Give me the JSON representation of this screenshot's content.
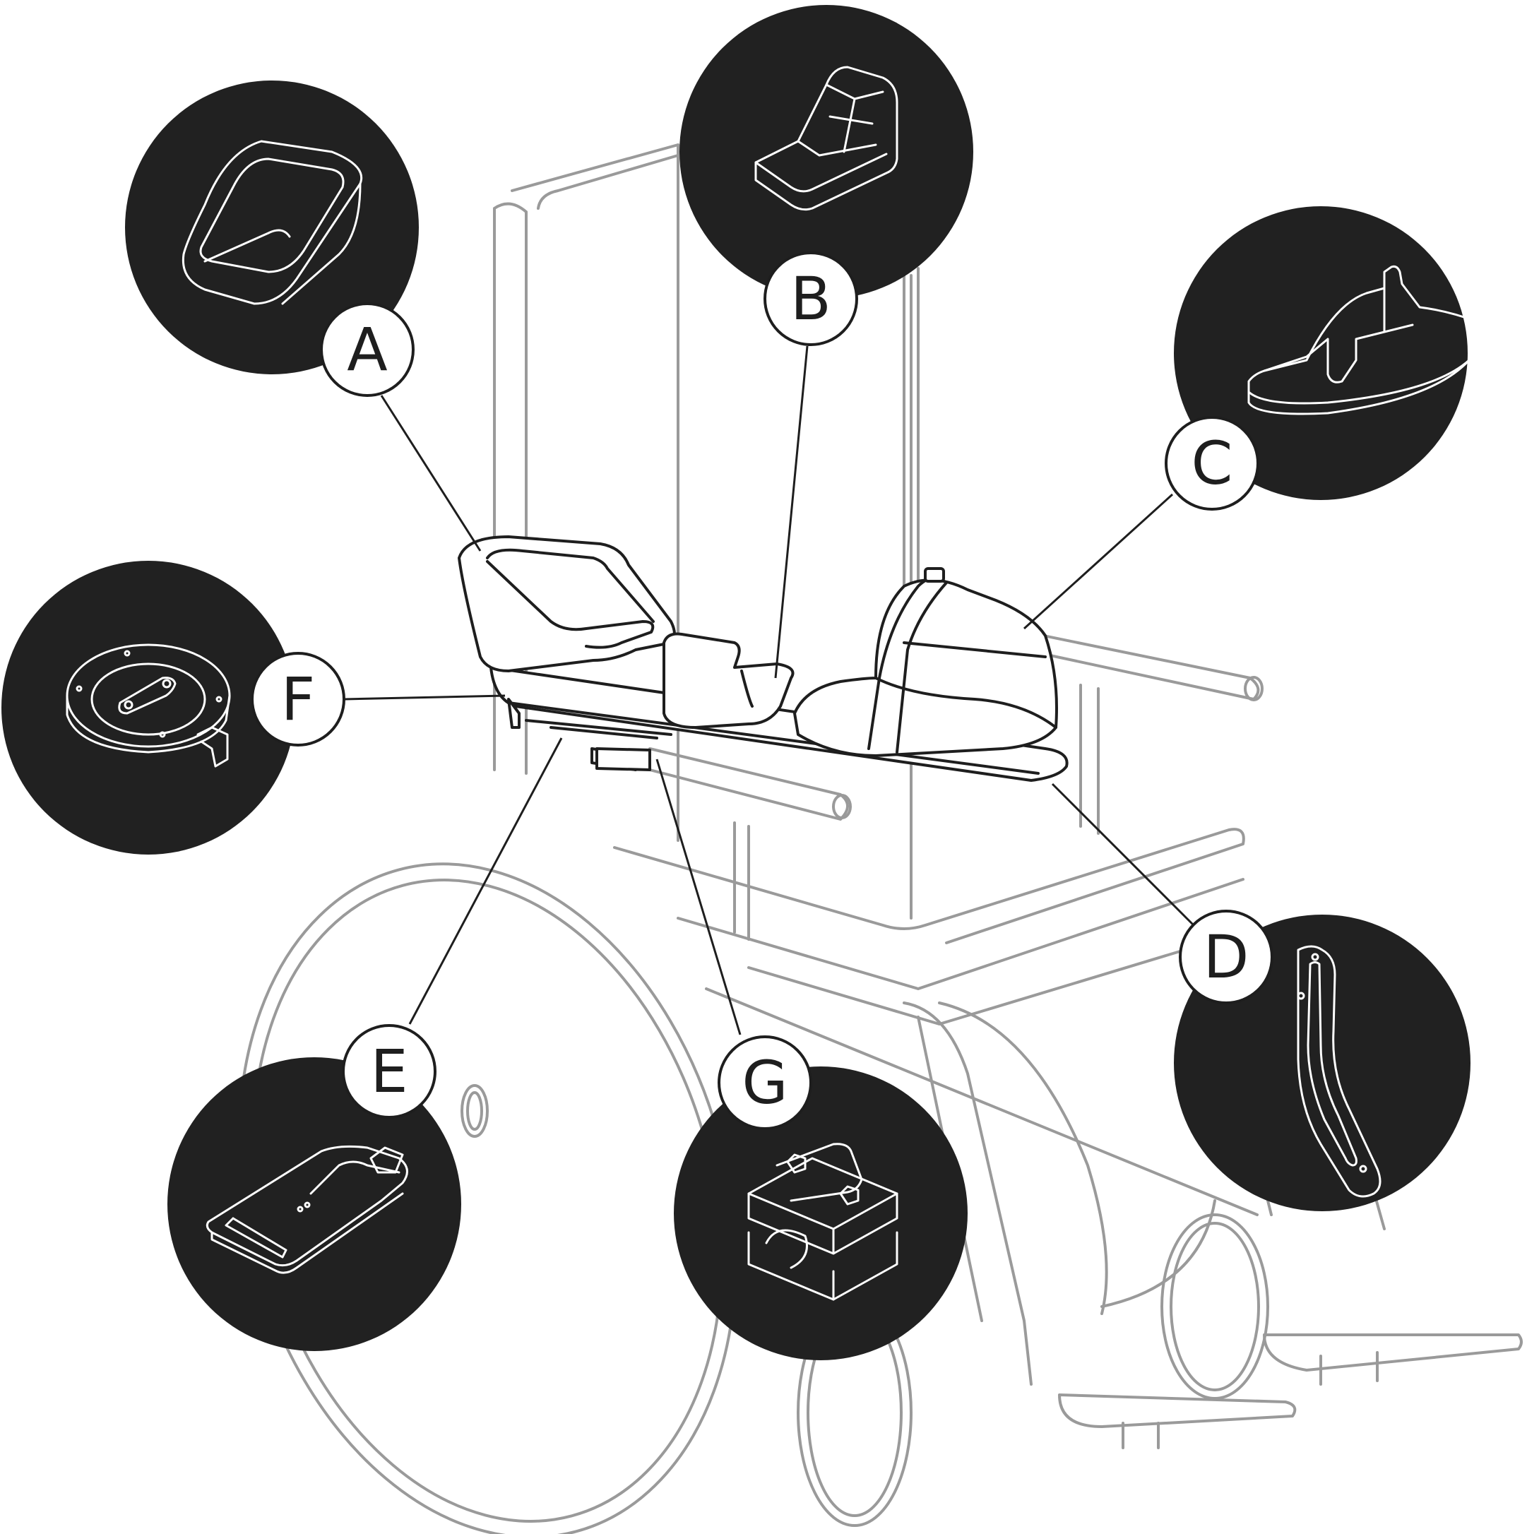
{
  "colors": {
    "disc": "#212121",
    "outline": "#1e1e1e",
    "chair": "#9a9a9a",
    "background": "#ffffff"
  },
  "callouts": [
    {
      "id": "A",
      "label": "A",
      "icon": "armrest-cup-icon"
    },
    {
      "id": "B",
      "label": "B",
      "icon": "hand-rest-pad-icon"
    },
    {
      "id": "C",
      "label": "C",
      "icon": "joystick-dome-icon"
    },
    {
      "id": "D",
      "label": "D",
      "icon": "curved-slotted-rail-icon"
    },
    {
      "id": "E",
      "label": "E",
      "icon": "mounting-plate-icon"
    },
    {
      "id": "F",
      "label": "F",
      "icon": "round-swivel-mount-icon"
    },
    {
      "id": "G",
      "label": "G",
      "icon": "tube-clamp-icon"
    }
  ]
}
